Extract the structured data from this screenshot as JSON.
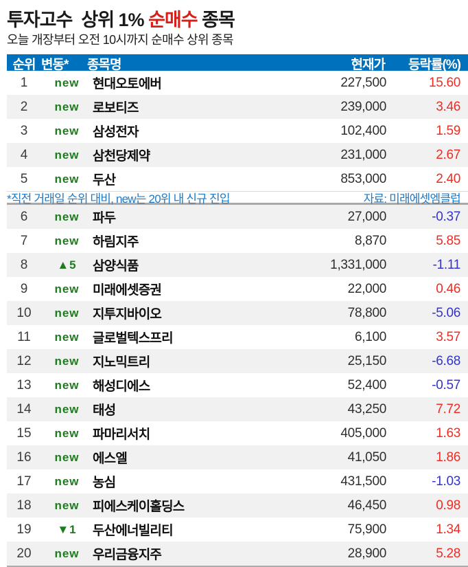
{
  "header": {
    "title_prefix": "투자고수  상위 1% ",
    "title_highlight": "순매수",
    "title_suffix": " 종목",
    "subtitle": "오늘 개장부터 오전 10시까지 순매수 상위 종목"
  },
  "table": {
    "note_left": "*직전 거래일 순위 대비, new는 20위 내 신규 진입",
    "note_right": "자료: 미래에셋엠클럽",
    "note_after_rank": 5
  },
  "colors": {
    "header_bg": "#0072bd",
    "title_red": "#d91e18",
    "rate_up_red": "#ee2c24",
    "rate_down_blue": "#3333cc",
    "change_green": "#1e7b1e",
    "note_blue": "#2079c5",
    "alt_row_bg": "#f1f1f1"
  },
  "chart_data": {
    "type": "table",
    "title": "투자고수  상위 1% 순매수 종목",
    "subtitle": "오늘 개장부터 오전 10시까지 순매수 상위 종목",
    "columns": [
      "순위",
      "변동*",
      "종목명",
      "현재가",
      "등락률(%)"
    ],
    "footnote": "*직전 거래일 순위 대비, new는 20위 내 신규 진입",
    "source": "자료: 미래에셋엠클럽",
    "rows": [
      {
        "rank": 1,
        "change": "new",
        "name": "현대오토에버",
        "price": "227,500",
        "rate": "15.60"
      },
      {
        "rank": 2,
        "change": "new",
        "name": "로보티즈",
        "price": "239,000",
        "rate": "3.46"
      },
      {
        "rank": 3,
        "change": "new",
        "name": "삼성전자",
        "price": "102,400",
        "rate": "1.59"
      },
      {
        "rank": 4,
        "change": "new",
        "name": "삼천당제약",
        "price": "231,000",
        "rate": "2.67"
      },
      {
        "rank": 5,
        "change": "new",
        "name": "두산",
        "price": "853,000",
        "rate": "2.40"
      },
      {
        "rank": 6,
        "change": "new",
        "name": "파두",
        "price": "27,000",
        "rate": "-0.37"
      },
      {
        "rank": 7,
        "change": "new",
        "name": "하림지주",
        "price": "8,870",
        "rate": "5.85"
      },
      {
        "rank": 8,
        "change": "▲5",
        "name": "삼양식품",
        "price": "1,331,000",
        "rate": "-1.11"
      },
      {
        "rank": 9,
        "change": "new",
        "name": "미래에셋증권",
        "price": "22,000",
        "rate": "0.46"
      },
      {
        "rank": 10,
        "change": "new",
        "name": "지투지바이오",
        "price": "78,800",
        "rate": "-5.06"
      },
      {
        "rank": 11,
        "change": "new",
        "name": "글로벌텍스프리",
        "price": "6,100",
        "rate": "3.57"
      },
      {
        "rank": 12,
        "change": "new",
        "name": "지노믹트리",
        "price": "25,150",
        "rate": "-6.68"
      },
      {
        "rank": 13,
        "change": "new",
        "name": "해성디에스",
        "price": "52,400",
        "rate": "-0.57"
      },
      {
        "rank": 14,
        "change": "new",
        "name": "태성",
        "price": "43,250",
        "rate": "7.72"
      },
      {
        "rank": 15,
        "change": "new",
        "name": "파마리서치",
        "price": "405,000",
        "rate": "1.63"
      },
      {
        "rank": 16,
        "change": "new",
        "name": "에스엘",
        "price": "41,050",
        "rate": "1.86"
      },
      {
        "rank": 17,
        "change": "new",
        "name": "농심",
        "price": "431,500",
        "rate": "-1.03"
      },
      {
        "rank": 18,
        "change": "new",
        "name": "피에스케이홀딩스",
        "price": "46,450",
        "rate": "0.98"
      },
      {
        "rank": 19,
        "change": "▼1",
        "name": "두산에너빌리티",
        "price": "75,900",
        "rate": "1.34"
      },
      {
        "rank": 20,
        "change": "new",
        "name": "우리금융지주",
        "price": "28,900",
        "rate": "5.28"
      }
    ]
  }
}
